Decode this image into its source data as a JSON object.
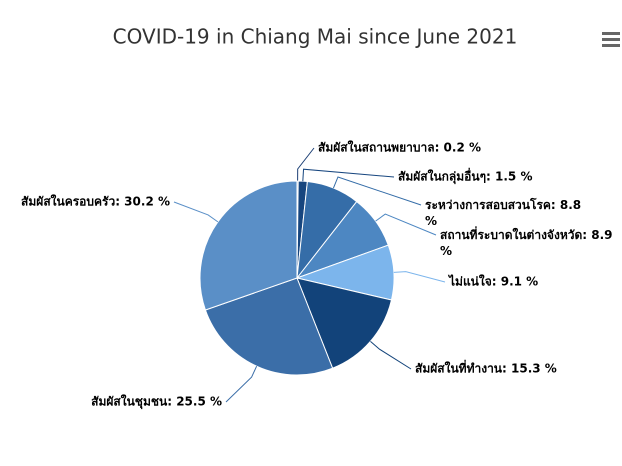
{
  "chart_data": {
    "type": "pie",
    "title": "COVID-19 in Chiang Mai since June 2021",
    "values": [
      0.2,
      1.5,
      8.8,
      8.9,
      9.1,
      15.3,
      25.5,
      30.2
    ],
    "value_labels": [
      "สัมผัสในสถานพยาบาล: 0.2 %",
      "สัมผัสในกลุ่มอื่นๆ: 1.5 %",
      "ระหว่างการสอบสวนโรค: 8.8 %",
      "สถานที่ระบาดในต่างจังหวัด: 8.9 %",
      "ไม่แน่ใจ: 9.1 %",
      "สัมผัสในที่ทำงาน: 15.3 %",
      "สัมผัสในชุมชน: 25.5 %",
      "สัมผัสในครอบครัว: 30.2 %"
    ],
    "colors": [
      "#1c3f75",
      "#17467f",
      "#356da8",
      "#4d87c2",
      "#7cb5ec",
      "#12437a",
      "#3b6ea8",
      "#5a8fc7"
    ]
  }
}
